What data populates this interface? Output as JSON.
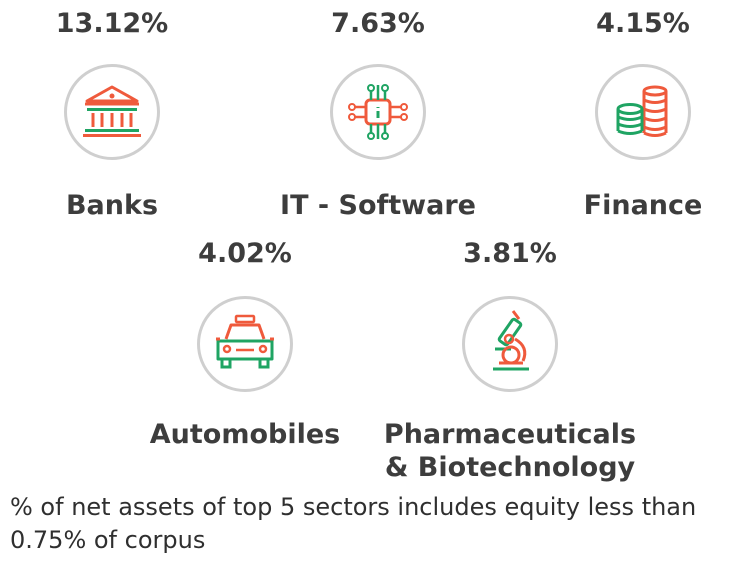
{
  "sectors": [
    {
      "name": "Banks",
      "percent": "13.12%",
      "icon": "bank-icon"
    },
    {
      "name": "IT - Software",
      "percent": "7.63%",
      "icon": "chip-icon"
    },
    {
      "name": "Finance",
      "percent": "4.15%",
      "icon": "coins-icon"
    },
    {
      "name": "Automobiles",
      "percent": "4.02%",
      "icon": "car-icon"
    },
    {
      "name_line1": "Pharmaceuticals",
      "name_line2": "& Biotechnology",
      "percent": "3.81%",
      "icon": "microscope-icon"
    }
  ],
  "footnote": "% of net assets of top 5 sectors includes equity less than 0.75% of corpus",
  "colors": {
    "orange": "#ef5a3c",
    "green": "#1fa463",
    "circle": "#cfcfcf",
    "text": "#3d3d3d"
  }
}
